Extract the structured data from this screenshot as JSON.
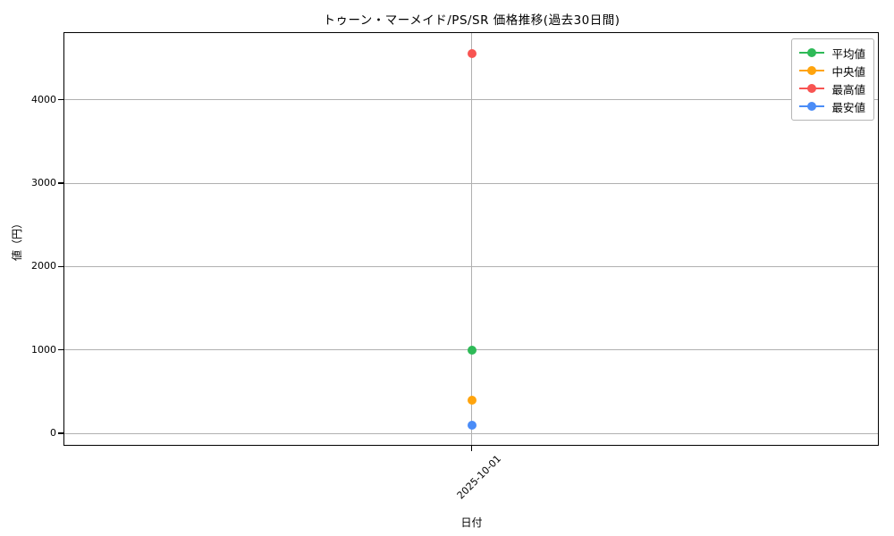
{
  "chart_data": {
    "type": "line",
    "title": "トゥーン・マーメイド/PS/SR 価格推移(過去30日間)",
    "xlabel": "日付",
    "ylabel": "値（円）",
    "categories": [
      "2025-10-01"
    ],
    "series": [
      {
        "name": "平均値",
        "color": "#2eba57",
        "values": [
          1000
        ]
      },
      {
        "name": "中央値",
        "color": "#ffa40d",
        "values": [
          400
        ]
      },
      {
        "name": "最高値",
        "color": "#f85452",
        "values": [
          4550
        ]
      },
      {
        "name": "最安値",
        "color": "#4a8cf7",
        "values": [
          100
        ]
      }
    ],
    "yticks": [
      0,
      1000,
      2000,
      3000,
      4000
    ],
    "ylim": [
      -150,
      4800
    ],
    "grid": true,
    "grid_color": "#b0b0b0",
    "spine_color": "#000000",
    "legend_position": "upper right",
    "legend_labels": [
      "平均値",
      "中央値",
      "最高値",
      "最安値"
    ]
  }
}
